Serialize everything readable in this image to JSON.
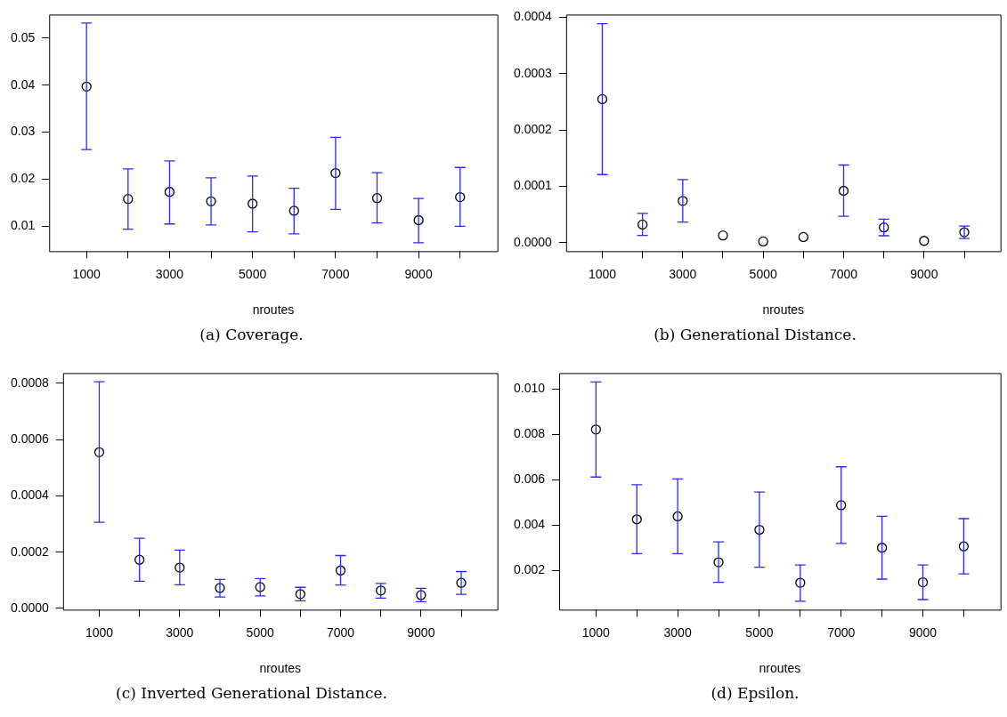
{
  "chart_data": [
    {
      "type": "scatter",
      "title": "(a) Coverage.",
      "xlabel": "nroutes",
      "marker": "circle",
      "color": "#000000",
      "x": [
        1000,
        2000,
        3000,
        4000,
        5000,
        6000,
        7000,
        8000,
        9000,
        10000
      ],
      "values": [
        0.0397,
        0.0158,
        0.0173,
        0.0153,
        0.0148,
        0.0133,
        0.0213,
        0.016,
        0.0113,
        0.0162
      ],
      "errors": [
        [
          0.0263,
          0.0532
        ],
        [
          0.0094,
          0.0222
        ],
        [
          0.0105,
          0.0239
        ],
        [
          0.0103,
          0.0203
        ],
        [
          0.0088,
          0.0207
        ],
        [
          0.0084,
          0.0181
        ],
        [
          0.0136,
          0.0289
        ],
        [
          0.0107,
          0.0214
        ],
        [
          0.0065,
          0.0159
        ],
        [
          0.01,
          0.0225
        ]
      ],
      "xlim": [
        100,
        10900
      ],
      "xticks": [
        1000,
        {
          "value": 2000,
          "label": null
        },
        3000,
        {
          "value": 4000,
          "label": null
        },
        5000,
        {
          "value": 6000,
          "label": null
        },
        7000,
        {
          "value": 8000,
          "label": null
        },
        9000,
        {
          "value": 10000,
          "label": null
        }
      ],
      "ylim": [
        0.0047,
        0.055
      ],
      "yticks": [
        0.01,
        0.02,
        0.03,
        0.04,
        0.05
      ]
    },
    {
      "type": "scatter",
      "title": "(b) Generational Distance.",
      "xlabel": "nroutes",
      "marker": "circle",
      "color": "#000000",
      "x": [
        1000,
        2000,
        3000,
        4000,
        5000,
        6000,
        7000,
        8000,
        9000,
        10000
      ],
      "values": [
        0.000255,
        3.23e-05,
        7.43e-05,
        1.3e-05,
        2.3e-06,
        1.02e-05,
        9.22e-05,
        2.72e-05,
        3.4e-06,
        1.87e-05
      ],
      "errors": [
        [
          0.000121,
          0.000389
        ],
        [
          1.3e-05,
          5.22e-05
        ],
        [
          3.69e-05,
          0.000112
        ],
        null,
        null,
        null,
        [
          4.69e-05,
          0.000138
        ],
        [
          1.25e-05,
          4.2e-05
        ],
        null,
        [
          7.4e-06,
          2.95e-05
        ]
      ],
      "xlim": [
        100,
        10900
      ],
      "xticks": [
        1000,
        {
          "value": 2000,
          "label": null
        },
        3000,
        {
          "value": 4000,
          "label": null
        },
        5000,
        {
          "value": 6000,
          "label": null
        },
        7000,
        {
          "value": 8000,
          "label": null
        },
        9000,
        {
          "value": 10000,
          "label": null
        }
      ],
      "ylim": [
        -1.5e-05,
        0.000405
      ],
      "yticks": [
        {
          "value": 0,
          "label": "0.0000"
        },
        0.0001,
        0.0002,
        0.0003,
        0.0004
      ]
    },
    {
      "type": "scatter",
      "title": "(c) Inverted Generational Distance.",
      "xlabel": "nroutes",
      "marker": "circle",
      "color": "#000000",
      "x": [
        1000,
        2000,
        3000,
        4000,
        5000,
        6000,
        7000,
        8000,
        9000,
        10000
      ],
      "values": [
        0.000555,
        0.000173,
        0.000145,
        7.27e-05,
        7.61e-05,
        5.11e-05,
        0.000135,
        6.36e-05,
        4.77e-05,
        9.09e-05
      ],
      "errors": [
        [
          0.000306,
          0.000805
        ],
        [
          9.66e-05,
          0.000249
        ],
        [
          8.41e-05,
          0.000207
        ],
        [
          4.09e-05,
          0.000103
        ],
        [
          4.43e-05,
          0.000106
        ],
        [
          2.73e-05,
          7.5e-05
        ],
        [
          8.3e-05,
          0.000188
        ],
        [
          3.64e-05,
          8.86e-05
        ],
        [
          2.39e-05,
          7.16e-05
        ],
        [
          5e-05,
          0.000131
        ]
      ],
      "xlim": [
        100,
        10900
      ],
      "xticks": [
        1000,
        {
          "value": 2000,
          "label": null
        },
        3000,
        {
          "value": 4000,
          "label": null
        },
        5000,
        {
          "value": 6000,
          "label": null
        },
        7000,
        {
          "value": 8000,
          "label": null
        },
        9000,
        {
          "value": 10000,
          "label": null
        }
      ],
      "ylim": [
        -4.5e-06,
        0.000836
      ],
      "yticks": [
        {
          "value": 0,
          "label": "0.0000"
        },
        0.0002,
        0.0004,
        0.0006,
        0.0008
      ]
    },
    {
      "type": "scatter",
      "title": "(d) Epsilon.",
      "xlabel": "nroutes",
      "marker": "circle",
      "color": "#000000",
      "x": [
        1000,
        2000,
        3000,
        4000,
        5000,
        6000,
        7000,
        8000,
        9000,
        10000
      ],
      "values": [
        0.00821,
        0.00426,
        0.00439,
        0.00237,
        0.0038,
        0.00147,
        0.00488,
        0.00301,
        0.00149,
        0.00307
      ],
      "errors": [
        [
          0.00612,
          0.0103
        ],
        [
          0.00275,
          0.00578
        ],
        [
          0.00275,
          0.00604
        ],
        [
          0.00149,
          0.00327
        ],
        [
          0.00215,
          0.00546
        ],
        [
          0.00066,
          0.00225
        ],
        [
          0.0032,
          0.00657
        ],
        [
          0.00163,
          0.00439
        ],
        [
          0.00073,
          0.00225
        ],
        [
          0.00186,
          0.00429
        ]
      ],
      "xlim": [
        100,
        10900
      ],
      "xticks": [
        1000,
        {
          "value": 2000,
          "label": null
        },
        3000,
        {
          "value": 4000,
          "label": null
        },
        5000,
        {
          "value": 6000,
          "label": null
        },
        7000,
        {
          "value": 8000,
          "label": null
        },
        9000,
        {
          "value": 10000,
          "label": null
        }
      ],
      "ylim": [
        0.000285,
        0.01069
      ],
      "yticks": [
        {
          "value": 0.002,
          "label": "0.002"
        },
        {
          "value": 0.004,
          "label": "0.004"
        },
        {
          "value": 0.006,
          "label": "0.006"
        },
        {
          "value": 0.008,
          "label": "0.008"
        },
        {
          "value": 0.01,
          "label": "0.010"
        }
      ]
    }
  ]
}
